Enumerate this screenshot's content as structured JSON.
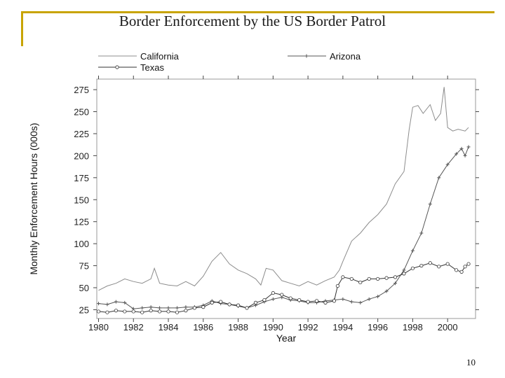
{
  "slide": {
    "title": "Border Enforcement by the US Border Patrol",
    "page_number": "10"
  },
  "chart_data": {
    "type": "line",
    "title": "Border Enforcement by the US Border Patrol",
    "xlabel": "Year",
    "ylabel": "Monthly Enforcement Hours (000s)",
    "xlim": [
      1979.9,
      2001.6
    ],
    "ylim": [
      15,
      287
    ],
    "xticks": [
      1980,
      1982,
      1984,
      1986,
      1988,
      1990,
      1992,
      1994,
      1996,
      1998,
      2000
    ],
    "yticks": [
      25,
      50,
      75,
      100,
      125,
      150,
      175,
      200,
      225,
      250,
      275
    ],
    "grid": false,
    "legend_position": "top",
    "series": [
      {
        "name": "California",
        "color": "#8c8c8c",
        "marker": "none",
        "x": [
          1980.0,
          1980.5,
          1981.0,
          1981.5,
          1982.0,
          1982.5,
          1983.0,
          1983.2,
          1983.5,
          1984.0,
          1984.5,
          1985.0,
          1985.5,
          1986.0,
          1986.5,
          1987.0,
          1987.5,
          1988.0,
          1988.5,
          1989.0,
          1989.3,
          1989.6,
          1990.0,
          1990.5,
          1991.0,
          1991.5,
          1992.0,
          1992.5,
          1993.0,
          1993.5,
          1993.8,
          1994.0,
          1994.5,
          1995.0,
          1995.5,
          1996.0,
          1996.5,
          1997.0,
          1997.5,
          1997.8,
          1998.0,
          1998.3,
          1998.6,
          1999.0,
          1999.3,
          1999.6,
          1999.8,
          2000.0,
          2000.3,
          2000.6,
          2001.0,
          2001.2
        ],
        "values": [
          47,
          52,
          55,
          60,
          57,
          55,
          60,
          72,
          55,
          53,
          52,
          57,
          52,
          63,
          80,
          90,
          77,
          70,
          66,
          60,
          53,
          72,
          70,
          58,
          55,
          52,
          57,
          53,
          58,
          62,
          70,
          80,
          103,
          112,
          124,
          133,
          145,
          168,
          182,
          230,
          255,
          257,
          248,
          258,
          240,
          248,
          278,
          232,
          228,
          230,
          228,
          232
        ]
      },
      {
        "name": "Arizona",
        "color": "#555555",
        "marker": "plus",
        "x": [
          1980.0,
          1980.5,
          1981.0,
          1981.5,
          1982.0,
          1982.5,
          1983.0,
          1983.5,
          1984.0,
          1984.5,
          1985.0,
          1985.5,
          1986.0,
          1986.5,
          1987.0,
          1987.5,
          1988.0,
          1988.5,
          1989.0,
          1989.5,
          1990.0,
          1990.5,
          1991.0,
          1991.5,
          1992.0,
          1992.5,
          1993.0,
          1993.5,
          1994.0,
          1994.5,
          1995.0,
          1995.5,
          1996.0,
          1996.5,
          1997.0,
          1997.5,
          1998.0,
          1998.5,
          1999.0,
          1999.5,
          2000.0,
          2000.5,
          2000.8,
          2001.0,
          2001.2
        ],
        "values": [
          32,
          31,
          34,
          33,
          26,
          27,
          28,
          27,
          27,
          27,
          28,
          28,
          30,
          35,
          32,
          31,
          29,
          27,
          30,
          34,
          37,
          39,
          36,
          35,
          33,
          33,
          35,
          36,
          37,
          34,
          33,
          37,
          40,
          46,
          55,
          70,
          92,
          112,
          145,
          175,
          190,
          202,
          208,
          200,
          210
        ]
      },
      {
        "name": "Texas",
        "color": "#333333",
        "marker": "circle",
        "x": [
          1980.0,
          1980.5,
          1981.0,
          1981.5,
          1982.0,
          1982.5,
          1983.0,
          1983.5,
          1984.0,
          1984.5,
          1985.0,
          1985.5,
          1986.0,
          1986.5,
          1987.0,
          1987.5,
          1988.0,
          1988.5,
          1989.0,
          1989.5,
          1990.0,
          1990.5,
          1991.0,
          1991.5,
          1992.0,
          1992.5,
          1993.0,
          1993.5,
          1993.7,
          1994.0,
          1994.5,
          1995.0,
          1995.5,
          1996.0,
          1996.5,
          1997.0,
          1997.5,
          1998.0,
          1998.5,
          1999.0,
          1999.5,
          2000.0,
          2000.5,
          2000.8,
          2001.0,
          2001.2
        ],
        "values": [
          23,
          22,
          24,
          23,
          23,
          22,
          24,
          23,
          23,
          22,
          24,
          27,
          28,
          33,
          34,
          31,
          30,
          27,
          33,
          36,
          44,
          42,
          38,
          36,
          34,
          35,
          33,
          35,
          52,
          62,
          60,
          56,
          60,
          60,
          61,
          62,
          66,
          72,
          75,
          78,
          74,
          77,
          70,
          68,
          74,
          77
        ]
      }
    ]
  }
}
